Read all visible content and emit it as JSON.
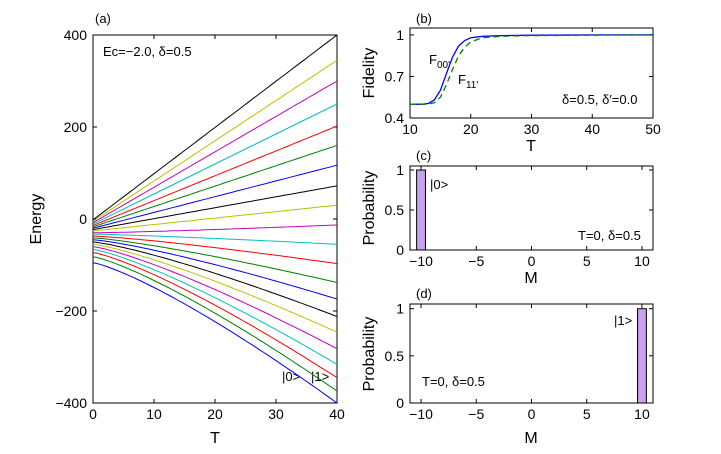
{
  "chart_data": [
    {
      "panel": "(a)",
      "type": "line",
      "xlabel": "T",
      "ylabel": "Energy",
      "xlim": [
        0,
        40
      ],
      "ylim": [
        -400,
        400
      ],
      "xticks": [
        0,
        10,
        20,
        30,
        40
      ],
      "yticks": [
        -400,
        -200,
        0,
        200,
        400
      ],
      "annotation": "Ec=−2.0, δ=0.5",
      "state_labels": [
        "|0>",
        "|1>"
      ],
      "series": [
        {
          "name": "level-1",
          "color": "#000000",
          "values": [
            [
              0,
              -2
            ],
            [
              40,
              400
            ]
          ]
        },
        {
          "name": "level-2",
          "color": "#bfbf00",
          "values": [
            [
              0,
              -5
            ],
            [
              40,
              345
            ]
          ]
        },
        {
          "name": "level-3",
          "color": "#bf00bf",
          "values": [
            [
              0,
              -8
            ],
            [
              40,
              300
            ]
          ]
        },
        {
          "name": "level-4",
          "color": "#00bfbf",
          "values": [
            [
              0,
              -11
            ],
            [
              40,
              250
            ]
          ]
        },
        {
          "name": "level-5",
          "color": "#ff0000",
          "values": [
            [
              0,
              -14
            ],
            [
              40,
              202
            ]
          ]
        },
        {
          "name": "level-6",
          "color": "#008000",
          "values": [
            [
              0,
              -17
            ],
            [
              40,
              160
            ]
          ]
        },
        {
          "name": "level-7",
          "color": "#0000ff",
          "values": [
            [
              0,
              -20
            ],
            [
              40,
              117
            ]
          ]
        },
        {
          "name": "level-8",
          "color": "#000000",
          "values": [
            [
              0,
              -23
            ],
            [
              40,
              72
            ]
          ]
        },
        {
          "name": "level-9",
          "color": "#bfbf00",
          "values": [
            [
              0,
              -26
            ],
            [
              40,
              30
            ]
          ]
        },
        {
          "name": "level-10",
          "color": "#bf00bf",
          "values": [
            [
              0,
              -30
            ],
            [
              40,
              -13
            ]
          ]
        },
        {
          "name": "level-11",
          "color": "#00bfbf",
          "values": [
            [
              0,
              -33
            ],
            [
              40,
              -55
            ]
          ]
        },
        {
          "name": "level-12",
          "color": "#ff0000",
          "values": [
            [
              0,
              -37
            ],
            [
              40,
              -97
            ]
          ]
        },
        {
          "name": "level-13",
          "color": "#008000",
          "values": [
            [
              0,
              -41
            ],
            [
              40,
              -138
            ]
          ]
        },
        {
          "name": "level-14",
          "color": "#0000ff",
          "values": [
            [
              0,
              -45
            ],
            [
              40,
              -174
            ]
          ]
        },
        {
          "name": "level-15",
          "color": "#000000",
          "values": [
            [
              0,
              -50
            ],
            [
              40,
              -212
            ]
          ]
        },
        {
          "name": "level-16",
          "color": "#bfbf00",
          "values": [
            [
              0,
              -55
            ],
            [
              40,
              -246
            ]
          ]
        },
        {
          "name": "level-17",
          "color": "#bf00bf",
          "values": [
            [
              0,
              -60
            ],
            [
              40,
              -282
            ]
          ]
        },
        {
          "name": "level-18",
          "color": "#00bfbf",
          "values": [
            [
              0,
              -66
            ],
            [
              40,
              -316
            ]
          ]
        },
        {
          "name": "level-19",
          "color": "#ff0000",
          "values": [
            [
              0,
              -73
            ],
            [
              40,
              -345
            ]
          ]
        },
        {
          "name": "level-20",
          "color": "#008000",
          "values": [
            [
              0,
              -82
            ],
            [
              40,
              -374
            ]
          ]
        },
        {
          "name": "level-21",
          "color": "#0000ff",
          "values": [
            [
              0,
              -95
            ],
            [
              40,
              -400
            ]
          ]
        }
      ]
    },
    {
      "panel": "(b)",
      "type": "line",
      "xlabel": "T",
      "ylabel": "Fidelity",
      "xlim": [
        10,
        50
      ],
      "ylim": [
        0.4,
        1.05
      ],
      "xticks": [
        10,
        20,
        30,
        40,
        50
      ],
      "yticks": [
        0.4,
        0.7,
        1
      ],
      "ytick_labels": [
        "0.4",
        "0.7",
        "1"
      ],
      "annotation": "δ=0.5, δ′=0.0",
      "series": [
        {
          "name": "F00'",
          "label_main": "F",
          "label_sub": "00'",
          "color": "#0000ff",
          "dash": "solid",
          "x": [
            10,
            12,
            13,
            14,
            15,
            16,
            17,
            18,
            19,
            20,
            22,
            25,
            30,
            40,
            50
          ],
          "y": [
            0.5,
            0.5,
            0.505,
            0.53,
            0.6,
            0.72,
            0.84,
            0.92,
            0.96,
            0.98,
            0.99,
            0.995,
            0.998,
            1.0,
            1.0
          ]
        },
        {
          "name": "F11'",
          "label_main": "F",
          "label_sub": "11'",
          "color": "#008000",
          "dash": "dashed",
          "x": [
            10,
            12,
            13,
            14,
            15,
            16,
            17,
            18,
            19,
            20,
            22,
            25,
            30,
            40,
            50
          ],
          "y": [
            0.5,
            0.5,
            0.5,
            0.51,
            0.55,
            0.64,
            0.75,
            0.85,
            0.91,
            0.95,
            0.98,
            0.99,
            0.995,
            0.998,
            1.0
          ]
        }
      ]
    },
    {
      "panel": "(c)",
      "type": "bar",
      "xlabel": "M",
      "ylabel": "Probability",
      "xlim": [
        -11,
        11
      ],
      "ylim": [
        0,
        1.05
      ],
      "xticks": [
        -10,
        -5,
        0,
        5,
        10
      ],
      "xtick_labels": [
        "−10",
        "−5",
        "0",
        "5",
        "10"
      ],
      "yticks": [
        0,
        0.5,
        1
      ],
      "bar_color": "#c8a0f0",
      "bars": [
        {
          "x": -10,
          "value": 1.0
        }
      ],
      "state_label": "|0>",
      "annotation": "T=0, δ=0.5"
    },
    {
      "panel": "(d)",
      "type": "bar",
      "xlabel": "M",
      "ylabel": "Probability",
      "xlim": [
        -11,
        11
      ],
      "ylim": [
        0,
        1.05
      ],
      "xticks": [
        -10,
        -5,
        0,
        5,
        10
      ],
      "xtick_labels": [
        "−10",
        "−5",
        "0",
        "5",
        "10"
      ],
      "yticks": [
        0,
        0.5,
        1
      ],
      "bar_color": "#c8a0f0",
      "bars": [
        {
          "x": 10,
          "value": 1.0
        }
      ],
      "state_label": "|1>",
      "annotation": "T=0, δ=0.5"
    }
  ]
}
